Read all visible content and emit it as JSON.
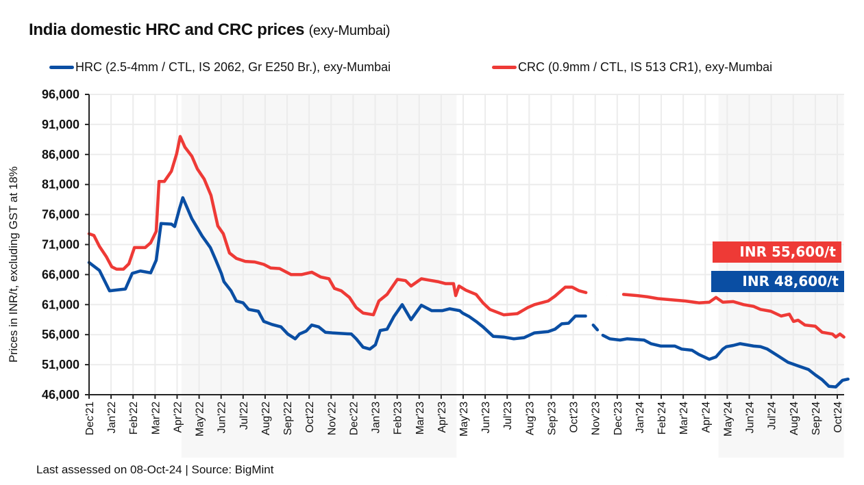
{
  "title": {
    "main": "India domestic HRC and CRC prices",
    "sub": "(exy-Mumbai)"
  },
  "footer": "Last assessed on 08-Oct-24  |  Source: BigMint",
  "colors": {
    "hrc": "#0a4ea3",
    "crc": "#ee3a36",
    "shade": "#f7f7f7",
    "grid": "#ececec",
    "axis": "#222222"
  },
  "chart_data": {
    "type": "line",
    "title": "India domestic HRC and CRC prices (exy-Mumbai)",
    "xlabel": "",
    "ylabel": "Prices in INR/t, excluding GST at 18%",
    "ylim": [
      46000,
      96000
    ],
    "yticks": [
      46000,
      51000,
      56000,
      61000,
      66000,
      71000,
      76000,
      81000,
      86000,
      91000,
      96000
    ],
    "ytick_labels": [
      "46,000",
      "51,000",
      "56,000",
      "61,000",
      "66,000",
      "71,000",
      "76,000",
      "81,000",
      "86,000",
      "91,000",
      "96,000"
    ],
    "x_unit": "months since Dec'21",
    "xlim": [
      0,
      34
    ],
    "xtick_labels": [
      "Dec'21",
      "Jan'22",
      "Feb'22",
      "Mar'22",
      "Apr'22",
      "May'22",
      "Jun'22",
      "Jul'22",
      "Aug'22",
      "Sep'22",
      "Oct'22",
      "Nov'22",
      "Dec'22",
      "Jan'23",
      "Feb'23",
      "Mar'23",
      "Apr'23",
      "May'23",
      "Jun'23",
      "Jul'23",
      "Aug'23",
      "Sep'23",
      "Oct'23",
      "Nov'23",
      "Dec'23",
      "Jan'24",
      "Feb'24",
      "Mar'24",
      "Apr'24",
      "May'24",
      "Jun'24",
      "Jul'24",
      "Aug'24",
      "Sep'24",
      "Oct'24"
    ],
    "grid": true,
    "legend_position": "top",
    "shaded_ranges": [
      [
        4.2,
        16.7
      ],
      [
        28.6,
        34.3
      ]
    ],
    "series": [
      {
        "name": "HRC (2.5-4mm / CTL, IS 2062, Gr E250 Br.), exy-Mumbai",
        "key": "hrc",
        "last_value_label": "INR 48,600/t",
        "gaps_after_x": [
          22.8,
          23.2
        ],
        "points": [
          [
            0.0,
            68000
          ],
          [
            0.47,
            66700
          ],
          [
            0.93,
            63300
          ],
          [
            1.4,
            63500
          ],
          [
            1.65,
            63600
          ],
          [
            1.96,
            66200
          ],
          [
            2.33,
            66600
          ],
          [
            2.8,
            66300
          ],
          [
            3.05,
            68400
          ],
          [
            3.27,
            74500
          ],
          [
            3.74,
            74400
          ],
          [
            3.89,
            74000
          ],
          [
            4.11,
            77000
          ],
          [
            4.26,
            78800
          ],
          [
            4.67,
            75300
          ],
          [
            5.14,
            72400
          ],
          [
            5.51,
            70500
          ],
          [
            5.76,
            68400
          ],
          [
            6.01,
            66200
          ],
          [
            6.13,
            64800
          ],
          [
            6.45,
            63300
          ],
          [
            6.69,
            61600
          ],
          [
            7.0,
            61300
          ],
          [
            7.25,
            60200
          ],
          [
            7.69,
            59900
          ],
          [
            7.94,
            58200
          ],
          [
            8.31,
            57700
          ],
          [
            8.72,
            57300
          ],
          [
            9.03,
            56100
          ],
          [
            9.37,
            55300
          ],
          [
            9.56,
            56100
          ],
          [
            9.87,
            56600
          ],
          [
            10.12,
            57600
          ],
          [
            10.43,
            57300
          ],
          [
            10.74,
            56400
          ],
          [
            11.05,
            56300
          ],
          [
            11.92,
            56100
          ],
          [
            12.14,
            55300
          ],
          [
            12.45,
            53900
          ],
          [
            12.76,
            53600
          ],
          [
            13.01,
            54300
          ],
          [
            13.23,
            56700
          ],
          [
            13.54,
            56900
          ],
          [
            13.85,
            59000
          ],
          [
            14.23,
            61000
          ],
          [
            14.63,
            58500
          ],
          [
            15.1,
            60900
          ],
          [
            15.57,
            60000
          ],
          [
            16.06,
            60000
          ],
          [
            16.38,
            60300
          ],
          [
            16.84,
            60000
          ],
          [
            16.97,
            59600
          ],
          [
            17.28,
            59000
          ],
          [
            17.59,
            58200
          ],
          [
            17.9,
            57300
          ],
          [
            18.37,
            55700
          ],
          [
            18.84,
            55600
          ],
          [
            19.3,
            55300
          ],
          [
            19.77,
            55500
          ],
          [
            20.24,
            56300
          ],
          [
            20.86,
            56500
          ],
          [
            21.17,
            56900
          ],
          [
            21.48,
            57800
          ],
          [
            21.79,
            57900
          ],
          [
            22.1,
            59100
          ],
          [
            22.56,
            59100
          ],
          [
            22.91,
            57600
          ],
          [
            23.1,
            56800
          ],
          [
            23.35,
            55900
          ],
          [
            23.66,
            55300
          ],
          [
            24.13,
            55100
          ],
          [
            24.44,
            55300
          ],
          [
            25.22,
            55100
          ],
          [
            25.53,
            54500
          ],
          [
            25.99,
            54100
          ],
          [
            26.62,
            54100
          ],
          [
            26.93,
            53600
          ],
          [
            27.4,
            53400
          ],
          [
            27.71,
            52700
          ],
          [
            28.18,
            51900
          ],
          [
            28.49,
            52300
          ],
          [
            28.8,
            53600
          ],
          [
            28.96,
            54000
          ],
          [
            29.27,
            54200
          ],
          [
            29.58,
            54500
          ],
          [
            29.89,
            54300
          ],
          [
            30.2,
            54100
          ],
          [
            30.51,
            54000
          ],
          [
            30.82,
            53600
          ],
          [
            31.29,
            52500
          ],
          [
            31.76,
            51400
          ],
          [
            32.22,
            50800
          ],
          [
            32.69,
            50200
          ],
          [
            33.0,
            49300
          ],
          [
            33.31,
            48500
          ],
          [
            33.62,
            47400
          ],
          [
            33.93,
            47300
          ],
          [
            34.24,
            48400
          ],
          [
            34.49,
            48600
          ]
        ]
      },
      {
        "name": "CRC (0.9mm / CTL, IS 513 CR1), exy-Mumbai",
        "key": "crc",
        "last_value_label": "INR 55,600/t",
        "gaps_after_x": [
          22.8,
          23.2,
          23.6
        ],
        "points": [
          [
            0.0,
            72800
          ],
          [
            0.22,
            72500
          ],
          [
            0.47,
            70700
          ],
          [
            0.78,
            69000
          ],
          [
            1.03,
            67300
          ],
          [
            1.25,
            66900
          ],
          [
            1.56,
            66900
          ],
          [
            1.81,
            67800
          ],
          [
            2.06,
            70500
          ],
          [
            2.55,
            70500
          ],
          [
            2.8,
            71300
          ],
          [
            3.05,
            73200
          ],
          [
            3.18,
            81500
          ],
          [
            3.42,
            81500
          ],
          [
            3.74,
            83200
          ],
          [
            3.98,
            86100
          ],
          [
            4.14,
            89000
          ],
          [
            4.36,
            87200
          ],
          [
            4.67,
            85700
          ],
          [
            4.92,
            83600
          ],
          [
            5.23,
            81900
          ],
          [
            5.54,
            79200
          ],
          [
            5.85,
            74100
          ],
          [
            6.1,
            72800
          ],
          [
            6.38,
            69600
          ],
          [
            6.69,
            68700
          ],
          [
            7.1,
            68200
          ],
          [
            7.53,
            68100
          ],
          [
            7.94,
            67700
          ],
          [
            8.25,
            67100
          ],
          [
            8.66,
            67000
          ],
          [
            9.18,
            66000
          ],
          [
            9.65,
            66000
          ],
          [
            10.12,
            66400
          ],
          [
            10.52,
            65600
          ],
          [
            10.9,
            65300
          ],
          [
            11.15,
            63700
          ],
          [
            11.46,
            63300
          ],
          [
            11.83,
            62200
          ],
          [
            12.14,
            60500
          ],
          [
            12.45,
            59600
          ],
          [
            12.92,
            59300
          ],
          [
            13.17,
            61600
          ],
          [
            13.54,
            62700
          ],
          [
            14.01,
            65200
          ],
          [
            14.38,
            65000
          ],
          [
            14.63,
            64100
          ],
          [
            15.1,
            65300
          ],
          [
            15.41,
            65100
          ],
          [
            15.88,
            64800
          ],
          [
            16.19,
            64500
          ],
          [
            16.56,
            64500
          ],
          [
            16.66,
            62500
          ],
          [
            16.81,
            64100
          ],
          [
            17.12,
            63400
          ],
          [
            17.59,
            62700
          ],
          [
            17.9,
            61300
          ],
          [
            18.21,
            60200
          ],
          [
            18.84,
            59300
          ],
          [
            19.46,
            59500
          ],
          [
            19.93,
            60500
          ],
          [
            20.24,
            61000
          ],
          [
            20.86,
            61600
          ],
          [
            21.17,
            62400
          ],
          [
            21.64,
            63900
          ],
          [
            21.95,
            63900
          ],
          [
            22.27,
            63300
          ],
          [
            22.58,
            63000
          ],
          [
            23.04,
            62700
          ],
          [
            23.51,
            62500
          ],
          [
            24.29,
            62700
          ],
          [
            24.91,
            62500
          ],
          [
            25.37,
            62300
          ],
          [
            25.84,
            62000
          ],
          [
            26.46,
            61800
          ],
          [
            27.09,
            61600
          ],
          [
            27.71,
            61300
          ],
          [
            28.18,
            61400
          ],
          [
            28.49,
            62200
          ],
          [
            28.8,
            61400
          ],
          [
            29.27,
            61500
          ],
          [
            29.74,
            61000
          ],
          [
            30.2,
            60700
          ],
          [
            30.51,
            60200
          ],
          [
            30.98,
            59900
          ],
          [
            31.45,
            59100
          ],
          [
            31.82,
            59400
          ],
          [
            32.01,
            58200
          ],
          [
            32.22,
            58400
          ],
          [
            32.53,
            57600
          ],
          [
            33.0,
            57400
          ],
          [
            33.31,
            56400
          ],
          [
            33.78,
            56100
          ],
          [
            33.93,
            55600
          ],
          [
            34.12,
            56100
          ],
          [
            34.3,
            55600
          ]
        ]
      }
    ]
  }
}
